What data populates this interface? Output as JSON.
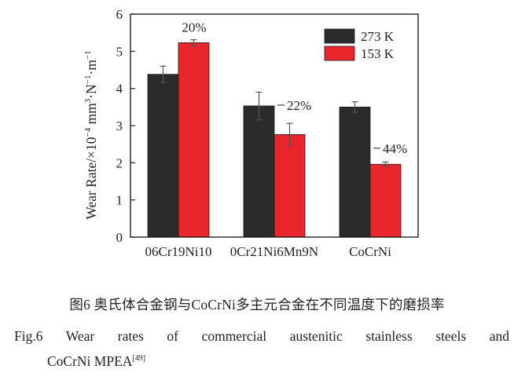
{
  "chart_data": {
    "type": "bar",
    "title": "",
    "xlabel": "",
    "ylabel": "Wear Rate/×10⁻⁴ mm³·N⁻¹·m⁻¹",
    "ylabel_parts": {
      "prefix": "Wear Rate/×10",
      "exp1": "−4",
      "unit1": " mm",
      "exp2": "3",
      "unit2": "·N",
      "exp3": "−1",
      "unit3": "·m",
      "exp4": "−1"
    },
    "ylim": [
      0,
      6
    ],
    "yticks": [
      "0",
      "1",
      "2",
      "3",
      "4",
      "5",
      "6"
    ],
    "categories": [
      "06Cr19Ni10",
      "0Cr21Ni6Mn9N",
      "CoCrNi"
    ],
    "series": [
      {
        "name": "273 K",
        "color": "#2b2b2b",
        "values": [
          4.38,
          3.53,
          3.5
        ],
        "errors": [
          0.22,
          0.37,
          0.14
        ]
      },
      {
        "name": "153 K",
        "color": "#e8262b",
        "values": [
          5.23,
          2.76,
          1.96
        ],
        "errors": [
          0.08,
          0.3,
          0.06
        ]
      }
    ],
    "annotations": [
      "20%",
      "22%",
      "44%"
    ],
    "grid": false,
    "legend": "top-right"
  },
  "caption": {
    "cn": "图6  奥氏体合金钢与CoCrNi多主元合金在不同温度下的磨损率",
    "en_line1": "Fig.6  Wear rates of commercial austenitic stainless steels and",
    "en_line2": "CoCrNi MPEA",
    "en_ref": "[49]"
  }
}
